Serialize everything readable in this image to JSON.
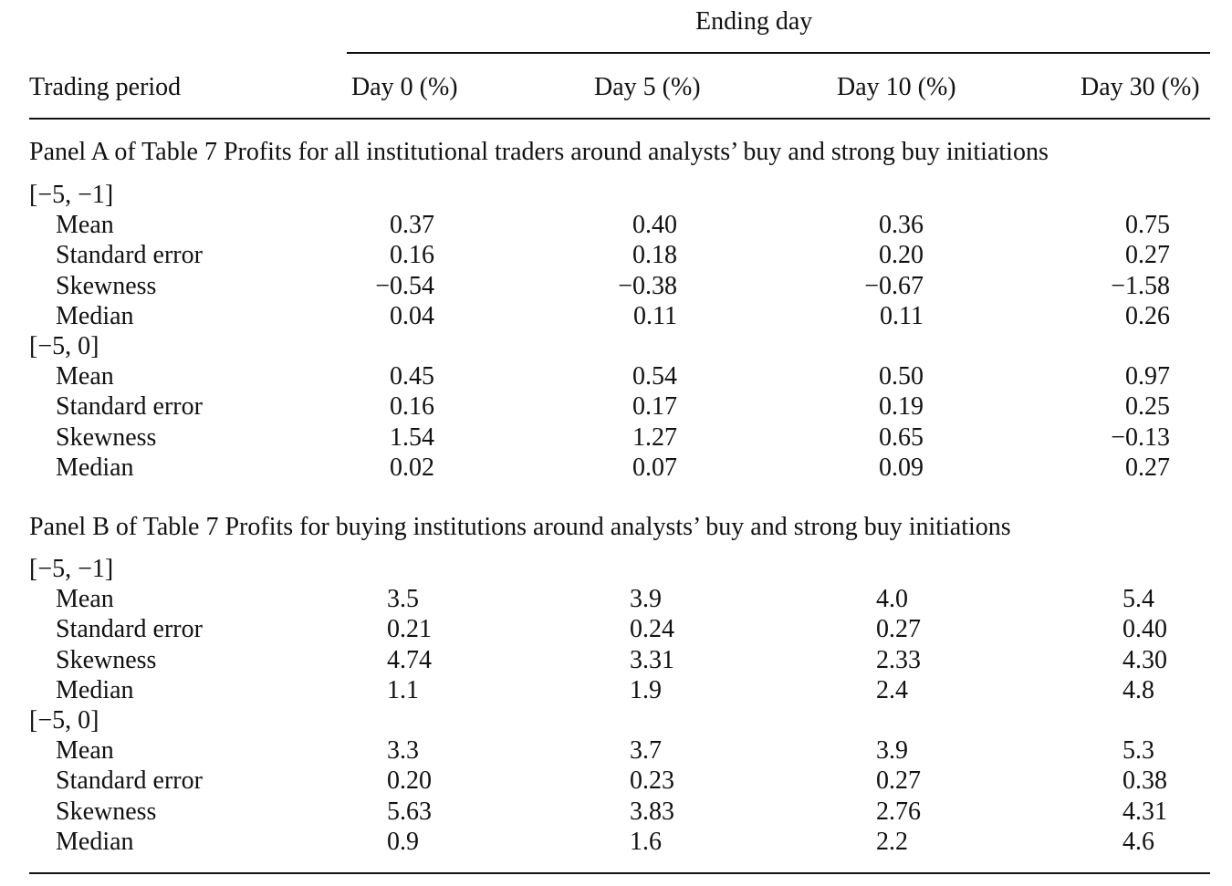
{
  "header": {
    "spanner": "Ending day",
    "row_label": "Trading period",
    "columns": [
      "Day 0 (%)",
      "Day 5 (%)",
      "Day 10 (%)",
      "Day 30 (%)"
    ]
  },
  "panels": [
    {
      "title": "Panel A of Table 7 Profits for all institutional traders around analysts’ buy and strong buy initiations",
      "groups": [
        {
          "period": "[−5, −1]",
          "rows": [
            {
              "label": "Mean",
              "values": [
                "0.37",
                "0.40",
                "0.36",
                "0.75"
              ]
            },
            {
              "label": "Standard error",
              "values": [
                "0.16",
                "0.18",
                "0.20",
                "0.27"
              ]
            },
            {
              "label": "Skewness",
              "values": [
                "−0.54",
                "−0.38",
                "−0.67",
                "−1.58"
              ]
            },
            {
              "label": "Median",
              "values": [
                "0.04",
                "0.11",
                "0.11",
                "0.26"
              ]
            }
          ]
        },
        {
          "period": "[−5, 0]",
          "rows": [
            {
              "label": "Mean",
              "values": [
                "0.45",
                "0.54",
                "0.50",
                "0.97"
              ]
            },
            {
              "label": "Standard error",
              "values": [
                "0.16",
                "0.17",
                "0.19",
                "0.25"
              ]
            },
            {
              "label": "Skewness",
              "values": [
                "1.54",
                "1.27",
                "0.65",
                "−0.13"
              ]
            },
            {
              "label": "Median",
              "values": [
                "0.02",
                "0.07",
                "0.09",
                "0.27"
              ]
            }
          ]
        }
      ]
    },
    {
      "title": "Panel B of Table 7 Profits for buying institutions around analysts’ buy and strong buy initiations",
      "groups": [
        {
          "period": "[−5, −1]",
          "rows": [
            {
              "label": "Mean",
              "values": [
                "3.5",
                "3.9",
                "4.0",
                "5.4"
              ]
            },
            {
              "label": "Standard error",
              "values": [
                "0.21",
                "0.24",
                "0.27",
                "0.40"
              ]
            },
            {
              "label": "Skewness",
              "values": [
                "4.74",
                "3.31",
                "2.33",
                "4.30"
              ]
            },
            {
              "label": "Median",
              "values": [
                "1.1",
                "1.9",
                "2.4",
                "4.8"
              ]
            }
          ]
        },
        {
          "period": "[−5, 0]",
          "rows": [
            {
              "label": "Mean",
              "values": [
                "3.3",
                "3.7",
                "3.9",
                "5.3"
              ]
            },
            {
              "label": "Standard error",
              "values": [
                "0.20",
                "0.23",
                "0.27",
                "0.38"
              ]
            },
            {
              "label": "Skewness",
              "values": [
                "5.63",
                "3.83",
                "2.76",
                "4.31"
              ]
            },
            {
              "label": "Median",
              "values": [
                "0.9",
                "1.6",
                "2.2",
                "4.6"
              ]
            }
          ]
        }
      ]
    }
  ]
}
